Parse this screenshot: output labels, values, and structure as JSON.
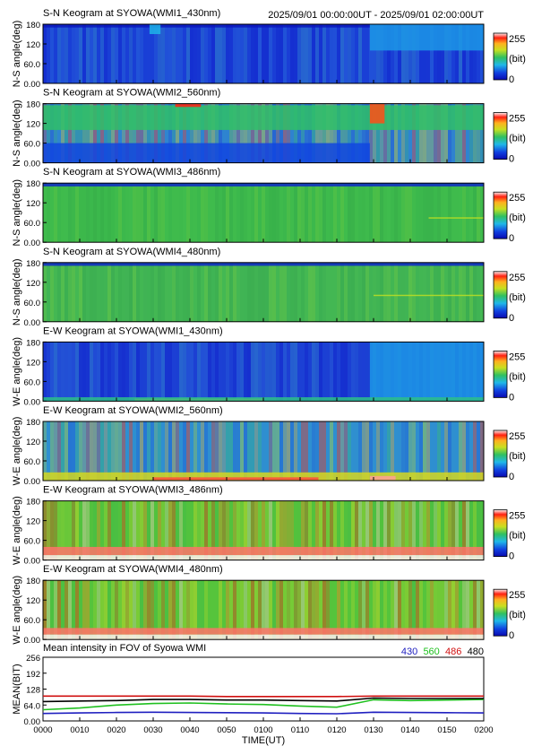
{
  "header": {
    "time_range": "2025/09/01 00:00:00UT - 2025/09/01 02:00:00UT"
  },
  "colorbar": {
    "max_label": "255",
    "unit_label": "(bit)",
    "min_label": "0"
  },
  "chart_data": [
    {
      "type": "heatmap",
      "title": "S-N Keogram at SYOWA(WMI1_430nm)",
      "ylabel": "N-S angle(deg)",
      "yticks": [
        "180",
        "120",
        "60.0",
        "0.00"
      ],
      "ylim": [
        0,
        180
      ],
      "xlim": [
        "0000",
        "0200"
      ],
      "base_color": "#1a3fd6",
      "palette": [
        "#0c18c8",
        "#1a3fd6",
        "#2f76dc",
        "#3aa0c8"
      ],
      "clim": [
        0,
        255
      ],
      "features": [
        {
          "time_from": "0000",
          "time_to": "0129",
          "angle_from": 170,
          "angle_to": 180,
          "level": 10
        },
        {
          "time_from": "0129",
          "time_to": "0200",
          "angle_from": 100,
          "angle_to": 180,
          "level": 70
        },
        {
          "time_from": "0029",
          "time_to": "0032",
          "angle_from": 150,
          "angle_to": 180,
          "level": 80
        }
      ]
    },
    {
      "type": "heatmap",
      "title": "S-N Keogram at SYOWA(WMI2_560nm)",
      "ylabel": "N-S angle(deg)",
      "yticks": [
        "180",
        "120",
        "60.0",
        "0.00"
      ],
      "ylim": [
        0,
        180
      ],
      "xlim": [
        "0000",
        "0200"
      ],
      "base_color": "#2f7fd0",
      "palette": [
        "#1a3fd6",
        "#2f8fd0",
        "#3cbf6a",
        "#8ad23a",
        "#e8e020",
        "#ff4020"
      ],
      "clim": [
        0,
        255
      ],
      "features": [
        {
          "time_from": "0000",
          "time_to": "0200",
          "angle_from": 100,
          "angle_to": 175,
          "level": 120
        },
        {
          "time_from": "0000",
          "time_to": "0129",
          "angle_from": 0,
          "angle_to": 60,
          "level": 40
        },
        {
          "time_from": "0036",
          "time_to": "0043",
          "angle_from": 170,
          "angle_to": 180,
          "level": 230
        },
        {
          "time_from": "0129",
          "time_to": "0133",
          "angle_from": 120,
          "angle_to": 180,
          "level": 220
        }
      ]
    },
    {
      "type": "heatmap",
      "title": "S-N Keogram at SYOWA(WMI3_486nm)",
      "ylabel": "N-S angle(deg)",
      "yticks": [
        "180",
        "120",
        "60.0",
        "0.00"
      ],
      "ylim": [
        0,
        180
      ],
      "xlim": [
        "0000",
        "0200"
      ],
      "base_color": "#3cb84c",
      "palette": [
        "#34a848",
        "#3cb84c",
        "#46c24e",
        "#6ccc40"
      ],
      "clim": [
        0,
        255
      ],
      "features": [
        {
          "time_from": "0000",
          "time_to": "0200",
          "angle_from": 170,
          "angle_to": 180,
          "level": 20
        },
        {
          "time_from": "0145",
          "time_to": "0200",
          "angle_from": 72,
          "angle_to": 76,
          "level": 160
        }
      ]
    },
    {
      "type": "heatmap",
      "title": "S-N Keogram at SYOWA(WMI4_480nm)",
      "ylabel": "N-S angle(deg)",
      "yticks": [
        "180",
        "120",
        "60.0",
        "0.00"
      ],
      "ylim": [
        0,
        180
      ],
      "xlim": [
        "0000",
        "0200"
      ],
      "base_color": "#40b454",
      "palette": [
        "#36a64c",
        "#40b454",
        "#4bbf52",
        "#7ad040"
      ],
      "clim": [
        0,
        255
      ],
      "features": [
        {
          "time_from": "0000",
          "time_to": "0200",
          "angle_from": 170,
          "angle_to": 180,
          "level": 20
        },
        {
          "time_from": "0130",
          "time_to": "0200",
          "angle_from": 78,
          "angle_to": 82,
          "level": 160
        }
      ]
    },
    {
      "type": "heatmap",
      "title": "E-W Keogram at SYOWA(WMI1_430nm)",
      "ylabel": "W-E angle(deg)",
      "yticks": [
        "180",
        "120",
        "60.0",
        "0.00"
      ],
      "ylim": [
        0,
        180
      ],
      "xlim": [
        "0000",
        "0200"
      ],
      "base_color": "#1c40d4",
      "palette": [
        "#0c18c8",
        "#1c40d4",
        "#2f70d8",
        "#3aa0c8"
      ],
      "clim": [
        0,
        255
      ],
      "features": [
        {
          "time_from": "0129",
          "time_to": "0200",
          "angle_from": 0,
          "angle_to": 180,
          "level": 70
        },
        {
          "time_from": "0025",
          "time_to": "0100",
          "angle_from": 2,
          "angle_to": 8,
          "level": 200
        },
        {
          "time_from": "0000",
          "time_to": "0200",
          "angle_from": 0,
          "angle_to": 12,
          "level": 110
        }
      ]
    },
    {
      "type": "heatmap",
      "title": "E-W Keogram at SYOWA(WMI2_560nm)",
      "ylabel": "W-E angle(deg)",
      "yticks": [
        "180",
        "120",
        "60.0",
        "0.00"
      ],
      "ylim": [
        0,
        180
      ],
      "xlim": [
        "0000",
        "0200"
      ],
      "base_color": "#2f8fd0",
      "palette": [
        "#1a4fd6",
        "#2f8fd0",
        "#3cbf6a",
        "#c8e020",
        "#ffb020",
        "#ff3010"
      ],
      "clim": [
        0,
        255
      ],
      "features": [
        {
          "time_from": "0000",
          "time_to": "0200",
          "angle_from": 0,
          "angle_to": 25,
          "level": 170
        },
        {
          "time_from": "0030",
          "time_to": "0115",
          "angle_from": 2,
          "angle_to": 10,
          "level": 235
        },
        {
          "time_from": "0129",
          "time_to": "0136",
          "angle_from": 2,
          "angle_to": 14,
          "level": 245
        }
      ]
    },
    {
      "type": "heatmap",
      "title": "E-W Keogram at SYOWA(WMI3_486nm)",
      "ylabel": "W-E angle(deg)",
      "yticks": [
        "180",
        "120",
        "60.0",
        "0.00"
      ],
      "ylim": [
        0,
        180
      ],
      "xlim": [
        "0000",
        "0200"
      ],
      "base_color": "#52c23e",
      "palette": [
        "#3cb84c",
        "#52c23e",
        "#b6d82c",
        "#f0e020",
        "#ff8020",
        "#ff2010",
        "#ffd0c8"
      ],
      "clim": [
        0,
        255
      ],
      "features": [
        {
          "time_from": "0000",
          "time_to": "0200",
          "angle_from": 15,
          "angle_to": 40,
          "level": 240
        },
        {
          "time_from": "0000",
          "time_to": "0200",
          "angle_from": 0,
          "angle_to": 15,
          "level": 255
        }
      ]
    },
    {
      "type": "heatmap",
      "title": "E-W Keogram at SYOWA(WMI4_480nm)",
      "ylabel": "W-E angle(deg)",
      "yticks": [
        "180",
        "120",
        "60.0",
        "0.00"
      ],
      "ylim": [
        0,
        180
      ],
      "xlim": [
        "0000",
        "0200"
      ],
      "base_color": "#56c43c",
      "palette": [
        "#3cb84c",
        "#56c43c",
        "#b6d82c",
        "#f0e020",
        "#ff8020",
        "#ff2010",
        "#ffd0c8"
      ],
      "clim": [
        0,
        255
      ],
      "features": [
        {
          "time_from": "0000",
          "time_to": "0200",
          "angle_from": 15,
          "angle_to": 35,
          "level": 240
        },
        {
          "time_from": "0000",
          "time_to": "0200",
          "angle_from": 0,
          "angle_to": 15,
          "level": 255
        }
      ]
    },
    {
      "type": "line",
      "title": "Mean intensity in FOV of Syowa WMI",
      "ylabel": "MEAN(BIT)",
      "xlabel": "TIME(UT)",
      "ylim": [
        0,
        256
      ],
      "yticks": [
        "256",
        "192",
        "128",
        "64.0",
        "0.00"
      ],
      "ytick_values": [
        256,
        192,
        128,
        64,
        0
      ],
      "categories": [
        "0000",
        "0010",
        "0020",
        "0030",
        "0040",
        "0050",
        "0100",
        "0110",
        "0120",
        "0130",
        "0140",
        "0150",
        "0200"
      ],
      "x_minutes": [
        0,
        10,
        20,
        30,
        40,
        50,
        60,
        70,
        80,
        90,
        100,
        110,
        120
      ],
      "series": [
        {
          "name": "430",
          "color": "#2020c0",
          "x": [
            0,
            10,
            20,
            30,
            40,
            50,
            60,
            70,
            80,
            90,
            100,
            110,
            120
          ],
          "values": [
            30,
            32,
            34,
            35,
            34,
            33,
            32,
            30,
            29,
            35,
            34,
            33,
            32
          ]
        },
        {
          "name": "560",
          "color": "#20c020",
          "x": [
            0,
            10,
            20,
            30,
            40,
            50,
            60,
            70,
            80,
            90,
            100,
            110,
            120
          ],
          "values": [
            45,
            52,
            64,
            70,
            72,
            68,
            66,
            60,
            55,
            85,
            82,
            84,
            86
          ]
        },
        {
          "name": "486",
          "color": "#d01010",
          "x": [
            0,
            10,
            20,
            30,
            40,
            50,
            60,
            70,
            80,
            90,
            100,
            110,
            120
          ],
          "values": [
            100,
            100,
            100,
            100,
            100,
            98,
            98,
            98,
            98,
            100,
            100,
            100,
            100
          ]
        },
        {
          "name": "480",
          "color": "#000000",
          "x": [
            0,
            10,
            20,
            30,
            40,
            50,
            60,
            70,
            80,
            90,
            100,
            110,
            120
          ],
          "values": [
            78,
            80,
            82,
            86,
            86,
            84,
            84,
            82,
            80,
            92,
            90,
            90,
            90
          ]
        }
      ]
    }
  ]
}
